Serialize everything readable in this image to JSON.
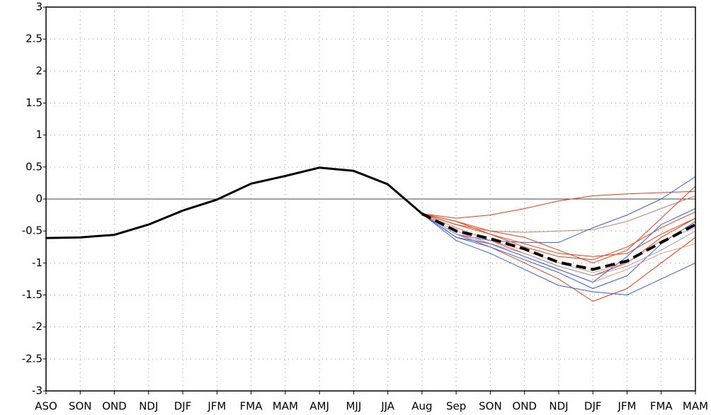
{
  "chart_data": {
    "type": "line",
    "categories": [
      "ASO",
      "SON",
      "OND",
      "NDJ",
      "DJF",
      "JFM",
      "FMA",
      "MAM",
      "AMJ",
      "MJJ",
      "JJA",
      "Aug",
      "Sep",
      "SON",
      "OND",
      "NDJ",
      "DJF",
      "JFM",
      "FMA",
      "MAM"
    ],
    "ylim": [
      -3,
      3
    ],
    "yticks": [
      -3,
      -2.5,
      -2,
      -1.5,
      -1,
      -0.5,
      0,
      0.5,
      1,
      1.5,
      2,
      2.5,
      3
    ],
    "grid": true,
    "series": [
      {
        "color": "#ee3a10",
        "width": 1,
        "values": [
          null,
          null,
          null,
          null,
          null,
          null,
          null,
          null,
          null,
          null,
          null,
          -0.23,
          -0.3,
          -0.25,
          -0.15,
          -0.03,
          0.05,
          0.08,
          0.1,
          0.12
        ]
      },
      {
        "color": "#c08070",
        "width": 1,
        "values": [
          null,
          null,
          null,
          null,
          null,
          null,
          null,
          null,
          null,
          null,
          null,
          -0.23,
          -0.4,
          -0.5,
          -0.52,
          -0.5,
          -0.48,
          -0.35,
          -0.15,
          0.05
        ]
      },
      {
        "color": "#ee3a10",
        "width": 1,
        "values": [
          null,
          null,
          null,
          null,
          null,
          null,
          null,
          null,
          null,
          null,
          null,
          -0.23,
          -0.45,
          -0.65,
          -0.85,
          -1.05,
          -1.2,
          -1.0,
          -0.6,
          -0.3
        ]
      },
      {
        "color": "#ee3a10",
        "width": 1,
        "values": [
          null,
          null,
          null,
          null,
          null,
          null,
          null,
          null,
          null,
          null,
          null,
          -0.23,
          -0.55,
          -0.75,
          -1.0,
          -1.25,
          -1.6,
          -1.4,
          -1.0,
          -0.6
        ]
      },
      {
        "color": "#3060e0",
        "width": 1,
        "values": [
          null,
          null,
          null,
          null,
          null,
          null,
          null,
          null,
          null,
          null,
          null,
          -0.23,
          -0.55,
          -0.65,
          -0.68,
          -0.68,
          -0.45,
          -0.25,
          0.0,
          0.35
        ]
      },
      {
        "color": "#3060e0",
        "width": 1,
        "values": [
          null,
          null,
          null,
          null,
          null,
          null,
          null,
          null,
          null,
          null,
          null,
          -0.23,
          -0.65,
          -0.85,
          -1.1,
          -1.35,
          -1.45,
          -1.5,
          -1.25,
          -1.0
        ]
      },
      {
        "color": "#3060e0",
        "width": 1,
        "values": [
          null,
          null,
          null,
          null,
          null,
          null,
          null,
          null,
          null,
          null,
          null,
          -0.23,
          -0.6,
          -0.75,
          -0.95,
          -1.15,
          -1.4,
          -1.2,
          -0.7,
          -0.35
        ]
      },
      {
        "color": "#ee3a10",
        "width": 1,
        "values": [
          null,
          null,
          null,
          null,
          null,
          null,
          null,
          null,
          null,
          null,
          null,
          -0.23,
          -0.35,
          -0.55,
          -0.75,
          -0.9,
          -0.95,
          -0.75,
          -0.45,
          -0.2
        ]
      },
      {
        "color": "#ee3a10",
        "width": 1,
        "values": [
          null,
          null,
          null,
          null,
          null,
          null,
          null,
          null,
          null,
          null,
          null,
          -0.23,
          -0.4,
          -0.55,
          -0.7,
          -0.85,
          -0.9,
          -0.85,
          -0.55,
          -0.3
        ]
      },
      {
        "color": "#e89080",
        "width": 1,
        "values": [
          null,
          null,
          null,
          null,
          null,
          null,
          null,
          null,
          null,
          null,
          null,
          -0.23,
          -0.5,
          -0.7,
          -0.9,
          -1.1,
          -1.3,
          -1.1,
          -0.85,
          -0.7
        ]
      },
      {
        "color": "#a0a0b0",
        "width": 1,
        "values": [
          null,
          null,
          null,
          null,
          null,
          null,
          null,
          null,
          null,
          null,
          null,
          -0.23,
          -0.55,
          -0.7,
          -0.85,
          -1.05,
          -1.2,
          -1.05,
          -0.8,
          -0.5
        ]
      },
      {
        "color": "#ee3a10",
        "width": 1,
        "values": [
          null,
          null,
          null,
          null,
          null,
          null,
          null,
          null,
          null,
          null,
          null,
          -0.23,
          -0.35,
          -0.5,
          -0.6,
          -0.8,
          -1.0,
          -0.8,
          -0.3,
          0.2
        ]
      },
      {
        "color": "#3060e0",
        "width": 1,
        "values": [
          null,
          null,
          null,
          null,
          null,
          null,
          null,
          null,
          null,
          null,
          null,
          -0.23,
          -0.6,
          -0.7,
          -0.9,
          -1.1,
          -1.3,
          -0.9,
          -0.4,
          -0.15
        ]
      },
      {
        "color": "#e89080",
        "width": 1,
        "values": [
          null,
          null,
          null,
          null,
          null,
          null,
          null,
          null,
          null,
          null,
          null,
          -0.23,
          -0.45,
          -0.65,
          -0.8,
          -1.0,
          -1.15,
          -1.0,
          -0.65,
          -0.45
        ]
      },
      {
        "color": "#000000",
        "width": 3,
        "values": [
          -0.61,
          -0.6,
          -0.56,
          -0.4,
          -0.18,
          -0.01,
          0.24,
          0.36,
          0.49,
          0.44,
          0.23,
          -0.23,
          null,
          null,
          null,
          null,
          null,
          null,
          null,
          null
        ]
      },
      {
        "color": "#000000",
        "width": 4,
        "dashed": true,
        "values": [
          null,
          null,
          null,
          null,
          null,
          null,
          null,
          null,
          null,
          null,
          null,
          -0.23,
          -0.5,
          -0.62,
          -0.78,
          -0.99,
          -1.1,
          -0.97,
          -0.68,
          -0.4
        ]
      }
    ]
  }
}
